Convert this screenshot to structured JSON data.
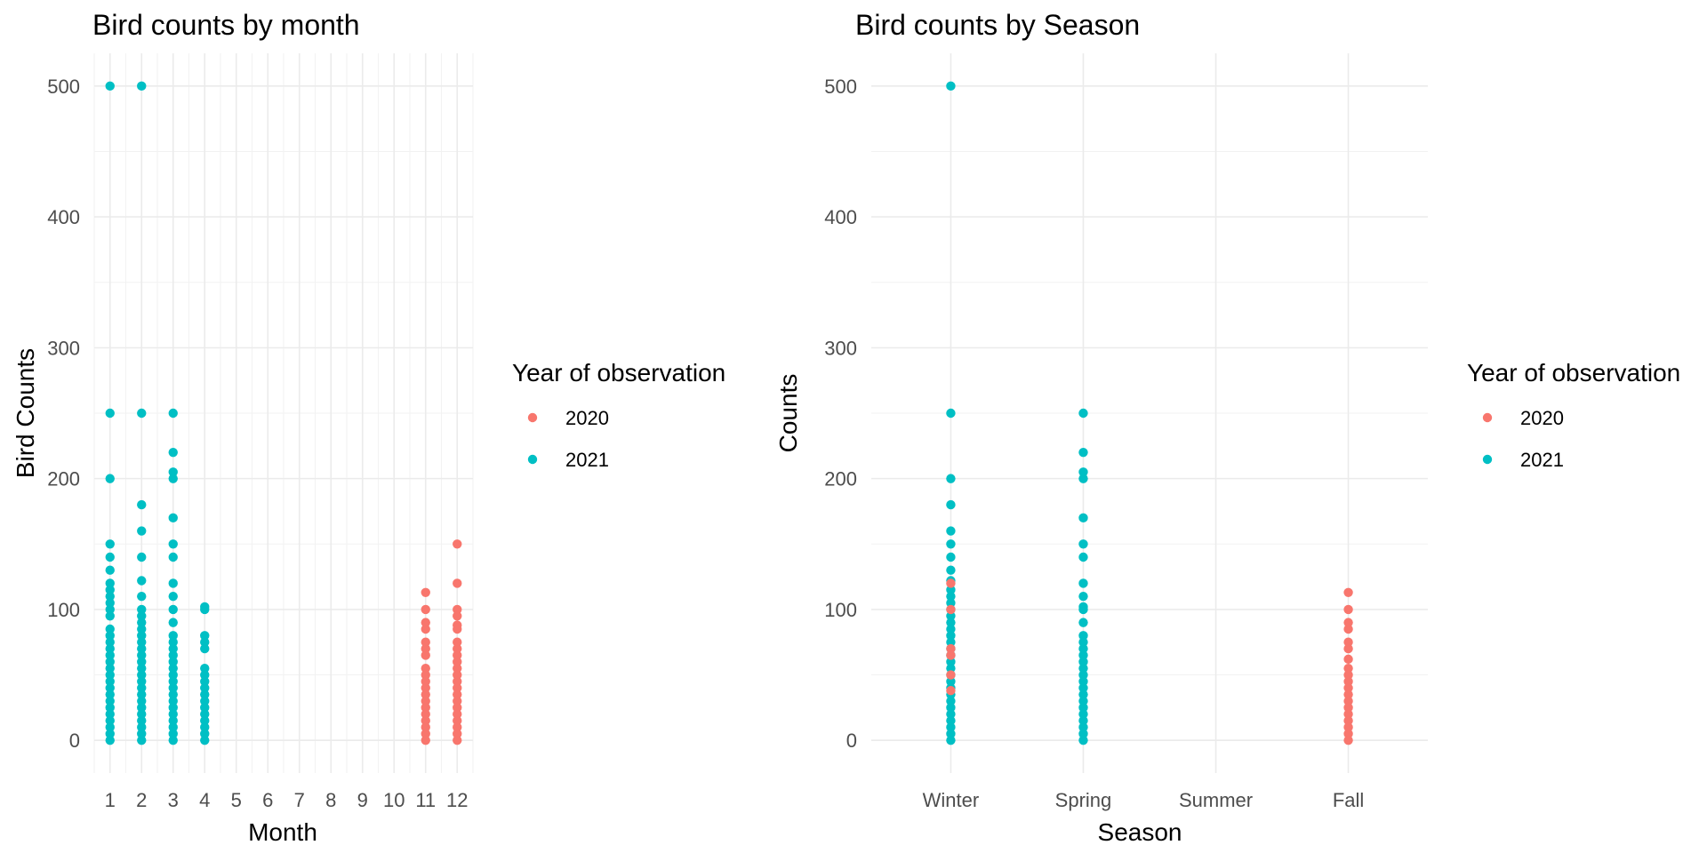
{
  "chart_data": [
    {
      "type": "scatter",
      "title": "Bird counts by month",
      "xlabel": "Month",
      "ylabel": "Bird Counts",
      "x_ticks": [
        "1",
        "2",
        "3",
        "4",
        "5",
        "6",
        "7",
        "8",
        "9",
        "10",
        "11",
        "12"
      ],
      "xlim": [
        0.5,
        12.5
      ],
      "ylim": [
        -25,
        525
      ],
      "y_ticks": [
        0,
        100,
        200,
        300,
        400,
        500
      ],
      "grid": true,
      "legend": {
        "title": "Year of observation",
        "placement": "right",
        "entries": [
          {
            "label": "2020",
            "color": "#F8766D"
          },
          {
            "label": "2021",
            "color": "#00BFC4"
          }
        ]
      },
      "series": [
        {
          "name": "2021",
          "color": "#00BFC4",
          "points": [
            [
              1,
              500
            ],
            [
              1,
              250
            ],
            [
              1,
              200
            ],
            [
              1,
              150
            ],
            [
              1,
              140
            ],
            [
              1,
              130
            ],
            [
              1,
              120
            ],
            [
              1,
              115
            ],
            [
              1,
              110
            ],
            [
              1,
              105
            ],
            [
              1,
              100
            ],
            [
              1,
              95
            ],
            [
              1,
              85
            ],
            [
              1,
              80
            ],
            [
              1,
              75
            ],
            [
              1,
              70
            ],
            [
              1,
              65
            ],
            [
              1,
              60
            ],
            [
              1,
              55
            ],
            [
              1,
              50
            ],
            [
              1,
              45
            ],
            [
              1,
              40
            ],
            [
              1,
              35
            ],
            [
              1,
              30
            ],
            [
              1,
              25
            ],
            [
              1,
              20
            ],
            [
              1,
              15
            ],
            [
              1,
              10
            ],
            [
              1,
              5
            ],
            [
              1,
              0
            ],
            [
              2,
              500
            ],
            [
              2,
              250
            ],
            [
              2,
              180
            ],
            [
              2,
              160
            ],
            [
              2,
              140
            ],
            [
              2,
              122
            ],
            [
              2,
              110
            ],
            [
              2,
              100
            ],
            [
              2,
              95
            ],
            [
              2,
              90
            ],
            [
              2,
              85
            ],
            [
              2,
              80
            ],
            [
              2,
              75
            ],
            [
              2,
              70
            ],
            [
              2,
              65
            ],
            [
              2,
              60
            ],
            [
              2,
              55
            ],
            [
              2,
              50
            ],
            [
              2,
              45
            ],
            [
              2,
              40
            ],
            [
              2,
              35
            ],
            [
              2,
              30
            ],
            [
              2,
              25
            ],
            [
              2,
              20
            ],
            [
              2,
              15
            ],
            [
              2,
              10
            ],
            [
              2,
              5
            ],
            [
              2,
              0
            ],
            [
              3,
              250
            ],
            [
              3,
              220
            ],
            [
              3,
              205
            ],
            [
              3,
              200
            ],
            [
              3,
              170
            ],
            [
              3,
              150
            ],
            [
              3,
              140
            ],
            [
              3,
              120
            ],
            [
              3,
              110
            ],
            [
              3,
              100
            ],
            [
              3,
              90
            ],
            [
              3,
              80
            ],
            [
              3,
              75
            ],
            [
              3,
              70
            ],
            [
              3,
              65
            ],
            [
              3,
              60
            ],
            [
              3,
              55
            ],
            [
              3,
              50
            ],
            [
              3,
              45
            ],
            [
              3,
              40
            ],
            [
              3,
              35
            ],
            [
              3,
              30
            ],
            [
              3,
              25
            ],
            [
              3,
              20
            ],
            [
              3,
              15
            ],
            [
              3,
              10
            ],
            [
              3,
              5
            ],
            [
              3,
              0
            ],
            [
              4,
              102
            ],
            [
              4,
              100
            ],
            [
              4,
              80
            ],
            [
              4,
              75
            ],
            [
              4,
              70
            ],
            [
              4,
              55
            ],
            [
              4,
              50
            ],
            [
              4,
              45
            ],
            [
              4,
              40
            ],
            [
              4,
              35
            ],
            [
              4,
              30
            ],
            [
              4,
              25
            ],
            [
              4,
              20
            ],
            [
              4,
              15
            ],
            [
              4,
              10
            ],
            [
              4,
              5
            ],
            [
              4,
              0
            ]
          ]
        },
        {
          "name": "2020",
          "color": "#F8766D",
          "points": [
            [
              11,
              113
            ],
            [
              11,
              100
            ],
            [
              11,
              90
            ],
            [
              11,
              85
            ],
            [
              11,
              75
            ],
            [
              11,
              70
            ],
            [
              11,
              65
            ],
            [
              11,
              55
            ],
            [
              11,
              50
            ],
            [
              11,
              45
            ],
            [
              11,
              40
            ],
            [
              11,
              35
            ],
            [
              11,
              30
            ],
            [
              11,
              25
            ],
            [
              11,
              20
            ],
            [
              11,
              15
            ],
            [
              11,
              10
            ],
            [
              11,
              5
            ],
            [
              11,
              0
            ],
            [
              12,
              150
            ],
            [
              12,
              120
            ],
            [
              12,
              100
            ],
            [
              12,
              95
            ],
            [
              12,
              88
            ],
            [
              12,
              85
            ],
            [
              12,
              75
            ],
            [
              12,
              70
            ],
            [
              12,
              65
            ],
            [
              12,
              60
            ],
            [
              12,
              55
            ],
            [
              12,
              50
            ],
            [
              12,
              45
            ],
            [
              12,
              40
            ],
            [
              12,
              35
            ],
            [
              12,
              30
            ],
            [
              12,
              25
            ],
            [
              12,
              20
            ],
            [
              12,
              15
            ],
            [
              12,
              10
            ],
            [
              12,
              5
            ],
            [
              12,
              0
            ]
          ]
        }
      ]
    },
    {
      "type": "scatter",
      "title": "Bird counts by Season",
      "xlabel": "Season",
      "ylabel": "Counts",
      "categories": [
        "Winter",
        "Spring",
        "Summer",
        "Fall"
      ],
      "ylim": [
        -25,
        525
      ],
      "y_ticks": [
        0,
        100,
        200,
        300,
        400,
        500
      ],
      "grid": true,
      "legend": {
        "title": "Year of observation",
        "placement": "right",
        "entries": [
          {
            "label": "2020",
            "color": "#F8766D"
          },
          {
            "label": "2021",
            "color": "#00BFC4"
          }
        ]
      },
      "series": [
        {
          "name": "2021",
          "color": "#00BFC4",
          "points": [
            [
              "Winter",
              500
            ],
            [
              "Winter",
              250
            ],
            [
              "Winter",
              200
            ],
            [
              "Winter",
              180
            ],
            [
              "Winter",
              160
            ],
            [
              "Winter",
              150
            ],
            [
              "Winter",
              140
            ],
            [
              "Winter",
              130
            ],
            [
              "Winter",
              122
            ],
            [
              "Winter",
              115
            ],
            [
              "Winter",
              110
            ],
            [
              "Winter",
              105
            ],
            [
              "Winter",
              100
            ],
            [
              "Winter",
              95
            ],
            [
              "Winter",
              90
            ],
            [
              "Winter",
              85
            ],
            [
              "Winter",
              80
            ],
            [
              "Winter",
              75
            ],
            [
              "Winter",
              70
            ],
            [
              "Winter",
              65
            ],
            [
              "Winter",
              60
            ],
            [
              "Winter",
              55
            ],
            [
              "Winter",
              50
            ],
            [
              "Winter",
              45
            ],
            [
              "Winter",
              40
            ],
            [
              "Winter",
              35
            ],
            [
              "Winter",
              30
            ],
            [
              "Winter",
              25
            ],
            [
              "Winter",
              20
            ],
            [
              "Winter",
              15
            ],
            [
              "Winter",
              10
            ],
            [
              "Winter",
              5
            ],
            [
              "Winter",
              0
            ],
            [
              "Spring",
              250
            ],
            [
              "Spring",
              220
            ],
            [
              "Spring",
              205
            ],
            [
              "Spring",
              200
            ],
            [
              "Spring",
              170
            ],
            [
              "Spring",
              150
            ],
            [
              "Spring",
              140
            ],
            [
              "Spring",
              120
            ],
            [
              "Spring",
              110
            ],
            [
              "Spring",
              102
            ],
            [
              "Spring",
              100
            ],
            [
              "Spring",
              90
            ],
            [
              "Spring",
              80
            ],
            [
              "Spring",
              75
            ],
            [
              "Spring",
              70
            ],
            [
              "Spring",
              65
            ],
            [
              "Spring",
              60
            ],
            [
              "Spring",
              55
            ],
            [
              "Spring",
              50
            ],
            [
              "Spring",
              45
            ],
            [
              "Spring",
              40
            ],
            [
              "Spring",
              35
            ],
            [
              "Spring",
              30
            ],
            [
              "Spring",
              25
            ],
            [
              "Spring",
              20
            ],
            [
              "Spring",
              15
            ],
            [
              "Spring",
              10
            ],
            [
              "Spring",
              5
            ],
            [
              "Spring",
              0
            ]
          ]
        },
        {
          "name": "2020",
          "color": "#F8766D",
          "points": [
            [
              "Winter",
              120
            ],
            [
              "Winter",
              100
            ],
            [
              "Winter",
              70
            ],
            [
              "Winter",
              65
            ],
            [
              "Winter",
              50
            ],
            [
              "Winter",
              38
            ],
            [
              "Fall",
              113
            ],
            [
              "Fall",
              100
            ],
            [
              "Fall",
              90
            ],
            [
              "Fall",
              85
            ],
            [
              "Fall",
              75
            ],
            [
              "Fall",
              70
            ],
            [
              "Fall",
              62
            ],
            [
              "Fall",
              55
            ],
            [
              "Fall",
              50
            ],
            [
              "Fall",
              45
            ],
            [
              "Fall",
              40
            ],
            [
              "Fall",
              35
            ],
            [
              "Fall",
              30
            ],
            [
              "Fall",
              25
            ],
            [
              "Fall",
              20
            ],
            [
              "Fall",
              15
            ],
            [
              "Fall",
              10
            ],
            [
              "Fall",
              5
            ],
            [
              "Fall",
              0
            ]
          ]
        }
      ]
    }
  ]
}
